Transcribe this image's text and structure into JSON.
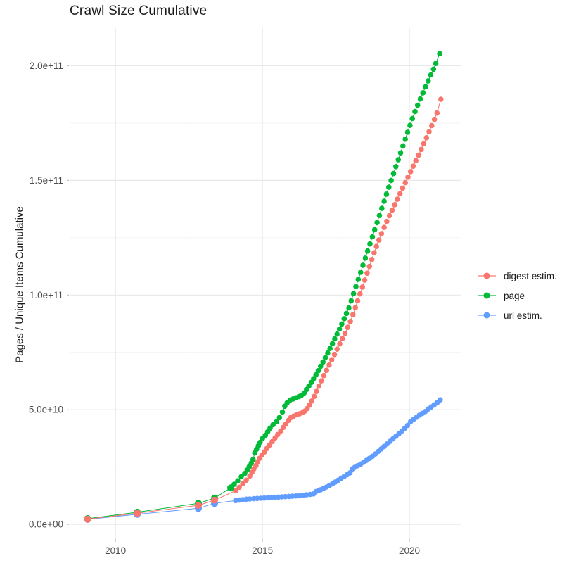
{
  "chart_data": {
    "type": "scatter",
    "title": "Crawl Size Cumulative",
    "xlabel": "",
    "ylabel": "Pages / Unique Items Cumulative",
    "value_unit": "pages (values stored in units of 1e9)",
    "grid": true,
    "legend_position": "right",
    "axes": {
      "xlim": [
        2008.44,
        2021.77
      ],
      "ylim_e9": [
        -6.4,
        216.4
      ],
      "x_ticks": [
        {
          "label": "2010",
          "year": 2010
        },
        {
          "label": "2015",
          "year": 2015
        },
        {
          "label": "2020",
          "year": 2020
        }
      ],
      "x_minor": [
        2012.5,
        2017.5
      ],
      "y_ticks": [
        {
          "label": "0.0e+00",
          "value": 0
        },
        {
          "label": "5.0e+10",
          "value": 50
        },
        {
          "label": "1.0e+11",
          "value": 100
        },
        {
          "label": "1.5e+11",
          "value": 150
        },
        {
          "label": "2.0e+11",
          "value": 200
        }
      ],
      "y_minor": [
        25,
        75,
        125,
        175
      ]
    },
    "style": {
      "grid_major": "#e8e8e8",
      "grid_minor": "#f4f4f4",
      "tick_color": "#c2c2c2",
      "tick_label_color": "#4d4d4d",
      "text_color": "#1a1a1a",
      "background": "#ffffff"
    },
    "series": [
      {
        "name": "digest estim.",
        "color": "#F8766D",
        "points": [
          [
            2009.05,
            2.3
          ],
          [
            2010.74,
            4.9
          ],
          [
            2012.82,
            8.3
          ],
          [
            2013.37,
            10.6
          ],
          [
            2014.09,
            14.7
          ],
          [
            2014.21,
            16.2
          ],
          [
            2014.33,
            17.8
          ],
          [
            2014.45,
            19.3
          ],
          [
            2014.57,
            21.1
          ],
          [
            2014.64,
            22.7
          ],
          [
            2014.71,
            24.2
          ],
          [
            2014.78,
            25.7
          ],
          [
            2014.84,
            27.3
          ],
          [
            2014.9,
            28.8
          ],
          [
            2014.98,
            30.3
          ],
          [
            2015.07,
            31.6
          ],
          [
            2015.15,
            33.1
          ],
          [
            2015.24,
            34.6
          ],
          [
            2015.33,
            36.1
          ],
          [
            2015.43,
            37.7
          ],
          [
            2015.52,
            39.2
          ],
          [
            2015.62,
            40.7
          ],
          [
            2015.71,
            42.3
          ],
          [
            2015.8,
            43.8
          ],
          [
            2015.88,
            45.3
          ],
          [
            2015.96,
            46.5
          ],
          [
            2016.06,
            47.2
          ],
          [
            2016.16,
            47.8
          ],
          [
            2016.26,
            48.2
          ],
          [
            2016.36,
            48.7
          ],
          [
            2016.44,
            49.4
          ],
          [
            2016.52,
            50.5
          ],
          [
            2016.6,
            52.0
          ],
          [
            2016.68,
            53.8
          ],
          [
            2016.76,
            55.8
          ],
          [
            2016.84,
            58.0
          ],
          [
            2016.92,
            60.3
          ],
          [
            2017.0,
            62.6
          ],
          [
            2017.09,
            64.9
          ],
          [
            2017.18,
            67.2
          ],
          [
            2017.27,
            69.5
          ],
          [
            2017.36,
            71.8
          ],
          [
            2017.45,
            74.1
          ],
          [
            2017.54,
            76.4
          ],
          [
            2017.63,
            78.7
          ],
          [
            2017.72,
            81.0
          ],
          [
            2017.81,
            83.3
          ],
          [
            2017.9,
            85.9
          ],
          [
            2017.99,
            88.5
          ],
          [
            2018.08,
            91.5
          ],
          [
            2018.16,
            94.5
          ],
          [
            2018.24,
            97.5
          ],
          [
            2018.32,
            100.5
          ],
          [
            2018.4,
            103.5
          ],
          [
            2018.48,
            106.5
          ],
          [
            2018.56,
            109.5
          ],
          [
            2018.64,
            112.5
          ],
          [
            2018.72,
            115.5
          ],
          [
            2018.8,
            118.4
          ],
          [
            2018.88,
            121.2
          ],
          [
            2018.96,
            124.0
          ],
          [
            2019.05,
            126.8
          ],
          [
            2019.14,
            129.5
          ],
          [
            2019.23,
            132.1
          ],
          [
            2019.32,
            134.6
          ],
          [
            2019.41,
            137.0
          ],
          [
            2019.5,
            139.4
          ],
          [
            2019.59,
            141.8
          ],
          [
            2019.68,
            144.2
          ],
          [
            2019.77,
            146.6
          ],
          [
            2019.86,
            149.0
          ],
          [
            2019.95,
            151.4
          ],
          [
            2020.04,
            153.8
          ],
          [
            2020.13,
            156.2
          ],
          [
            2020.22,
            158.6
          ],
          [
            2020.31,
            161.0
          ],
          [
            2020.4,
            163.5
          ],
          [
            2020.49,
            166.0
          ],
          [
            2020.58,
            168.6
          ],
          [
            2020.67,
            171.2
          ],
          [
            2020.76,
            173.9
          ],
          [
            2020.85,
            176.6
          ],
          [
            2020.94,
            179.4
          ],
          [
            2021.07,
            185.4
          ]
        ]
      },
      {
        "name": "page",
        "color": "#00BA38",
        "points": [
          [
            2009.05,
            2.5
          ],
          [
            2010.74,
            5.3
          ],
          [
            2012.82,
            9.2
          ],
          [
            2013.37,
            11.5
          ],
          [
            2013.92,
            15.9
          ],
          [
            2014.04,
            17.5
          ],
          [
            2014.16,
            19.0
          ],
          [
            2014.28,
            20.8
          ],
          [
            2014.4,
            22.2
          ],
          [
            2014.48,
            23.7
          ],
          [
            2014.55,
            25.2
          ],
          [
            2014.62,
            26.7
          ],
          [
            2014.68,
            28.3
          ],
          [
            2014.74,
            31.2
          ],
          [
            2014.8,
            32.8
          ],
          [
            2014.86,
            34.3
          ],
          [
            2014.92,
            35.8
          ],
          [
            2015.0,
            37.4
          ],
          [
            2015.1,
            38.9
          ],
          [
            2015.18,
            40.4
          ],
          [
            2015.26,
            42.0
          ],
          [
            2015.36,
            43.5
          ],
          [
            2015.48,
            44.8
          ],
          [
            2015.58,
            46.6
          ],
          [
            2015.68,
            49.0
          ],
          [
            2015.76,
            51.5
          ],
          [
            2015.84,
            53.0
          ],
          [
            2015.94,
            54.2
          ],
          [
            2016.04,
            54.7
          ],
          [
            2016.14,
            55.2
          ],
          [
            2016.24,
            55.7
          ],
          [
            2016.32,
            56.2
          ],
          [
            2016.42,
            57.3
          ],
          [
            2016.5,
            58.8
          ],
          [
            2016.58,
            60.3
          ],
          [
            2016.66,
            61.9
          ],
          [
            2016.74,
            63.5
          ],
          [
            2016.82,
            65.2
          ],
          [
            2016.9,
            67.0
          ],
          [
            2016.98,
            68.9
          ],
          [
            2017.06,
            70.8
          ],
          [
            2017.14,
            72.7
          ],
          [
            2017.22,
            74.7
          ],
          [
            2017.3,
            76.7
          ],
          [
            2017.38,
            78.8
          ],
          [
            2017.46,
            80.9
          ],
          [
            2017.54,
            83.0
          ],
          [
            2017.62,
            85.2
          ],
          [
            2017.7,
            87.4
          ],
          [
            2017.78,
            89.7
          ],
          [
            2017.86,
            92.0
          ],
          [
            2017.94,
            94.4
          ],
          [
            2018.02,
            97.5
          ],
          [
            2018.1,
            100.6
          ],
          [
            2018.18,
            103.7
          ],
          [
            2018.26,
            106.8
          ],
          [
            2018.34,
            109.9
          ],
          [
            2018.42,
            113.0
          ],
          [
            2018.5,
            116.1
          ],
          [
            2018.58,
            119.2
          ],
          [
            2018.66,
            122.3
          ],
          [
            2018.74,
            125.4
          ],
          [
            2018.82,
            128.5
          ],
          [
            2018.9,
            131.6
          ],
          [
            2018.98,
            134.7
          ],
          [
            2019.06,
            137.8
          ],
          [
            2019.14,
            140.9
          ],
          [
            2019.22,
            144.0
          ],
          [
            2019.3,
            147.0
          ],
          [
            2019.38,
            150.0
          ],
          [
            2019.46,
            153.0
          ],
          [
            2019.54,
            156.0
          ],
          [
            2019.62,
            159.0
          ],
          [
            2019.7,
            162.0
          ],
          [
            2019.78,
            165.0
          ],
          [
            2019.86,
            168.0
          ],
          [
            2019.94,
            171.0
          ],
          [
            2020.02,
            174.0
          ],
          [
            2020.1,
            177.0
          ],
          [
            2020.19,
            180.0
          ],
          [
            2020.28,
            182.8
          ],
          [
            2020.37,
            185.5
          ],
          [
            2020.46,
            188.2
          ],
          [
            2020.55,
            190.8
          ],
          [
            2020.64,
            193.4
          ],
          [
            2020.73,
            196.0
          ],
          [
            2020.82,
            198.5
          ],
          [
            2020.9,
            201.0
          ],
          [
            2021.03,
            205.3
          ]
        ]
      },
      {
        "name": "url estim.",
        "color": "#619CFF",
        "points": [
          [
            2009.05,
            2.2
          ],
          [
            2010.74,
            4.4
          ],
          [
            2012.82,
            7.0
          ],
          [
            2013.37,
            9.2
          ],
          [
            2014.09,
            10.4
          ],
          [
            2014.21,
            10.6
          ],
          [
            2014.33,
            10.8
          ],
          [
            2014.45,
            11.0
          ],
          [
            2014.57,
            11.1
          ],
          [
            2014.7,
            11.2
          ],
          [
            2014.82,
            11.3
          ],
          [
            2014.94,
            11.4
          ],
          [
            2015.06,
            11.5
          ],
          [
            2015.18,
            11.6
          ],
          [
            2015.3,
            11.7
          ],
          [
            2015.42,
            11.8
          ],
          [
            2015.54,
            11.9
          ],
          [
            2015.66,
            12.0
          ],
          [
            2015.78,
            12.1
          ],
          [
            2015.9,
            12.2
          ],
          [
            2016.02,
            12.3
          ],
          [
            2016.14,
            12.4
          ],
          [
            2016.26,
            12.5
          ],
          [
            2016.38,
            12.7
          ],
          [
            2016.5,
            12.9
          ],
          [
            2016.62,
            13.1
          ],
          [
            2016.74,
            13.3
          ],
          [
            2016.82,
            14.3
          ],
          [
            2016.9,
            14.7
          ],
          [
            2016.98,
            15.1
          ],
          [
            2017.08,
            15.7
          ],
          [
            2017.18,
            16.3
          ],
          [
            2017.28,
            17.0
          ],
          [
            2017.38,
            17.7
          ],
          [
            2017.48,
            18.5
          ],
          [
            2017.58,
            19.3
          ],
          [
            2017.68,
            20.1
          ],
          [
            2017.78,
            20.9
          ],
          [
            2017.88,
            21.7
          ],
          [
            2017.98,
            22.5
          ],
          [
            2018.06,
            24.2
          ],
          [
            2018.14,
            24.9
          ],
          [
            2018.24,
            25.6
          ],
          [
            2018.34,
            26.3
          ],
          [
            2018.44,
            27.1
          ],
          [
            2018.54,
            27.9
          ],
          [
            2018.64,
            28.8
          ],
          [
            2018.74,
            29.7
          ],
          [
            2018.84,
            30.7
          ],
          [
            2018.94,
            31.8
          ],
          [
            2019.04,
            32.9
          ],
          [
            2019.14,
            34.0
          ],
          [
            2019.24,
            35.1
          ],
          [
            2019.34,
            36.2
          ],
          [
            2019.44,
            37.3
          ],
          [
            2019.54,
            38.4
          ],
          [
            2019.64,
            39.5
          ],
          [
            2019.74,
            40.7
          ],
          [
            2019.84,
            41.9
          ],
          [
            2019.94,
            43.2
          ],
          [
            2020.04,
            44.8
          ],
          [
            2020.14,
            45.8
          ],
          [
            2020.24,
            46.7
          ],
          [
            2020.34,
            47.6
          ],
          [
            2020.44,
            48.4
          ],
          [
            2020.54,
            49.2
          ],
          [
            2020.64,
            50.3
          ],
          [
            2020.74,
            51.2
          ],
          [
            2020.84,
            52.1
          ],
          [
            2020.94,
            53.0
          ],
          [
            2021.05,
            54.3
          ]
        ]
      }
    ]
  }
}
